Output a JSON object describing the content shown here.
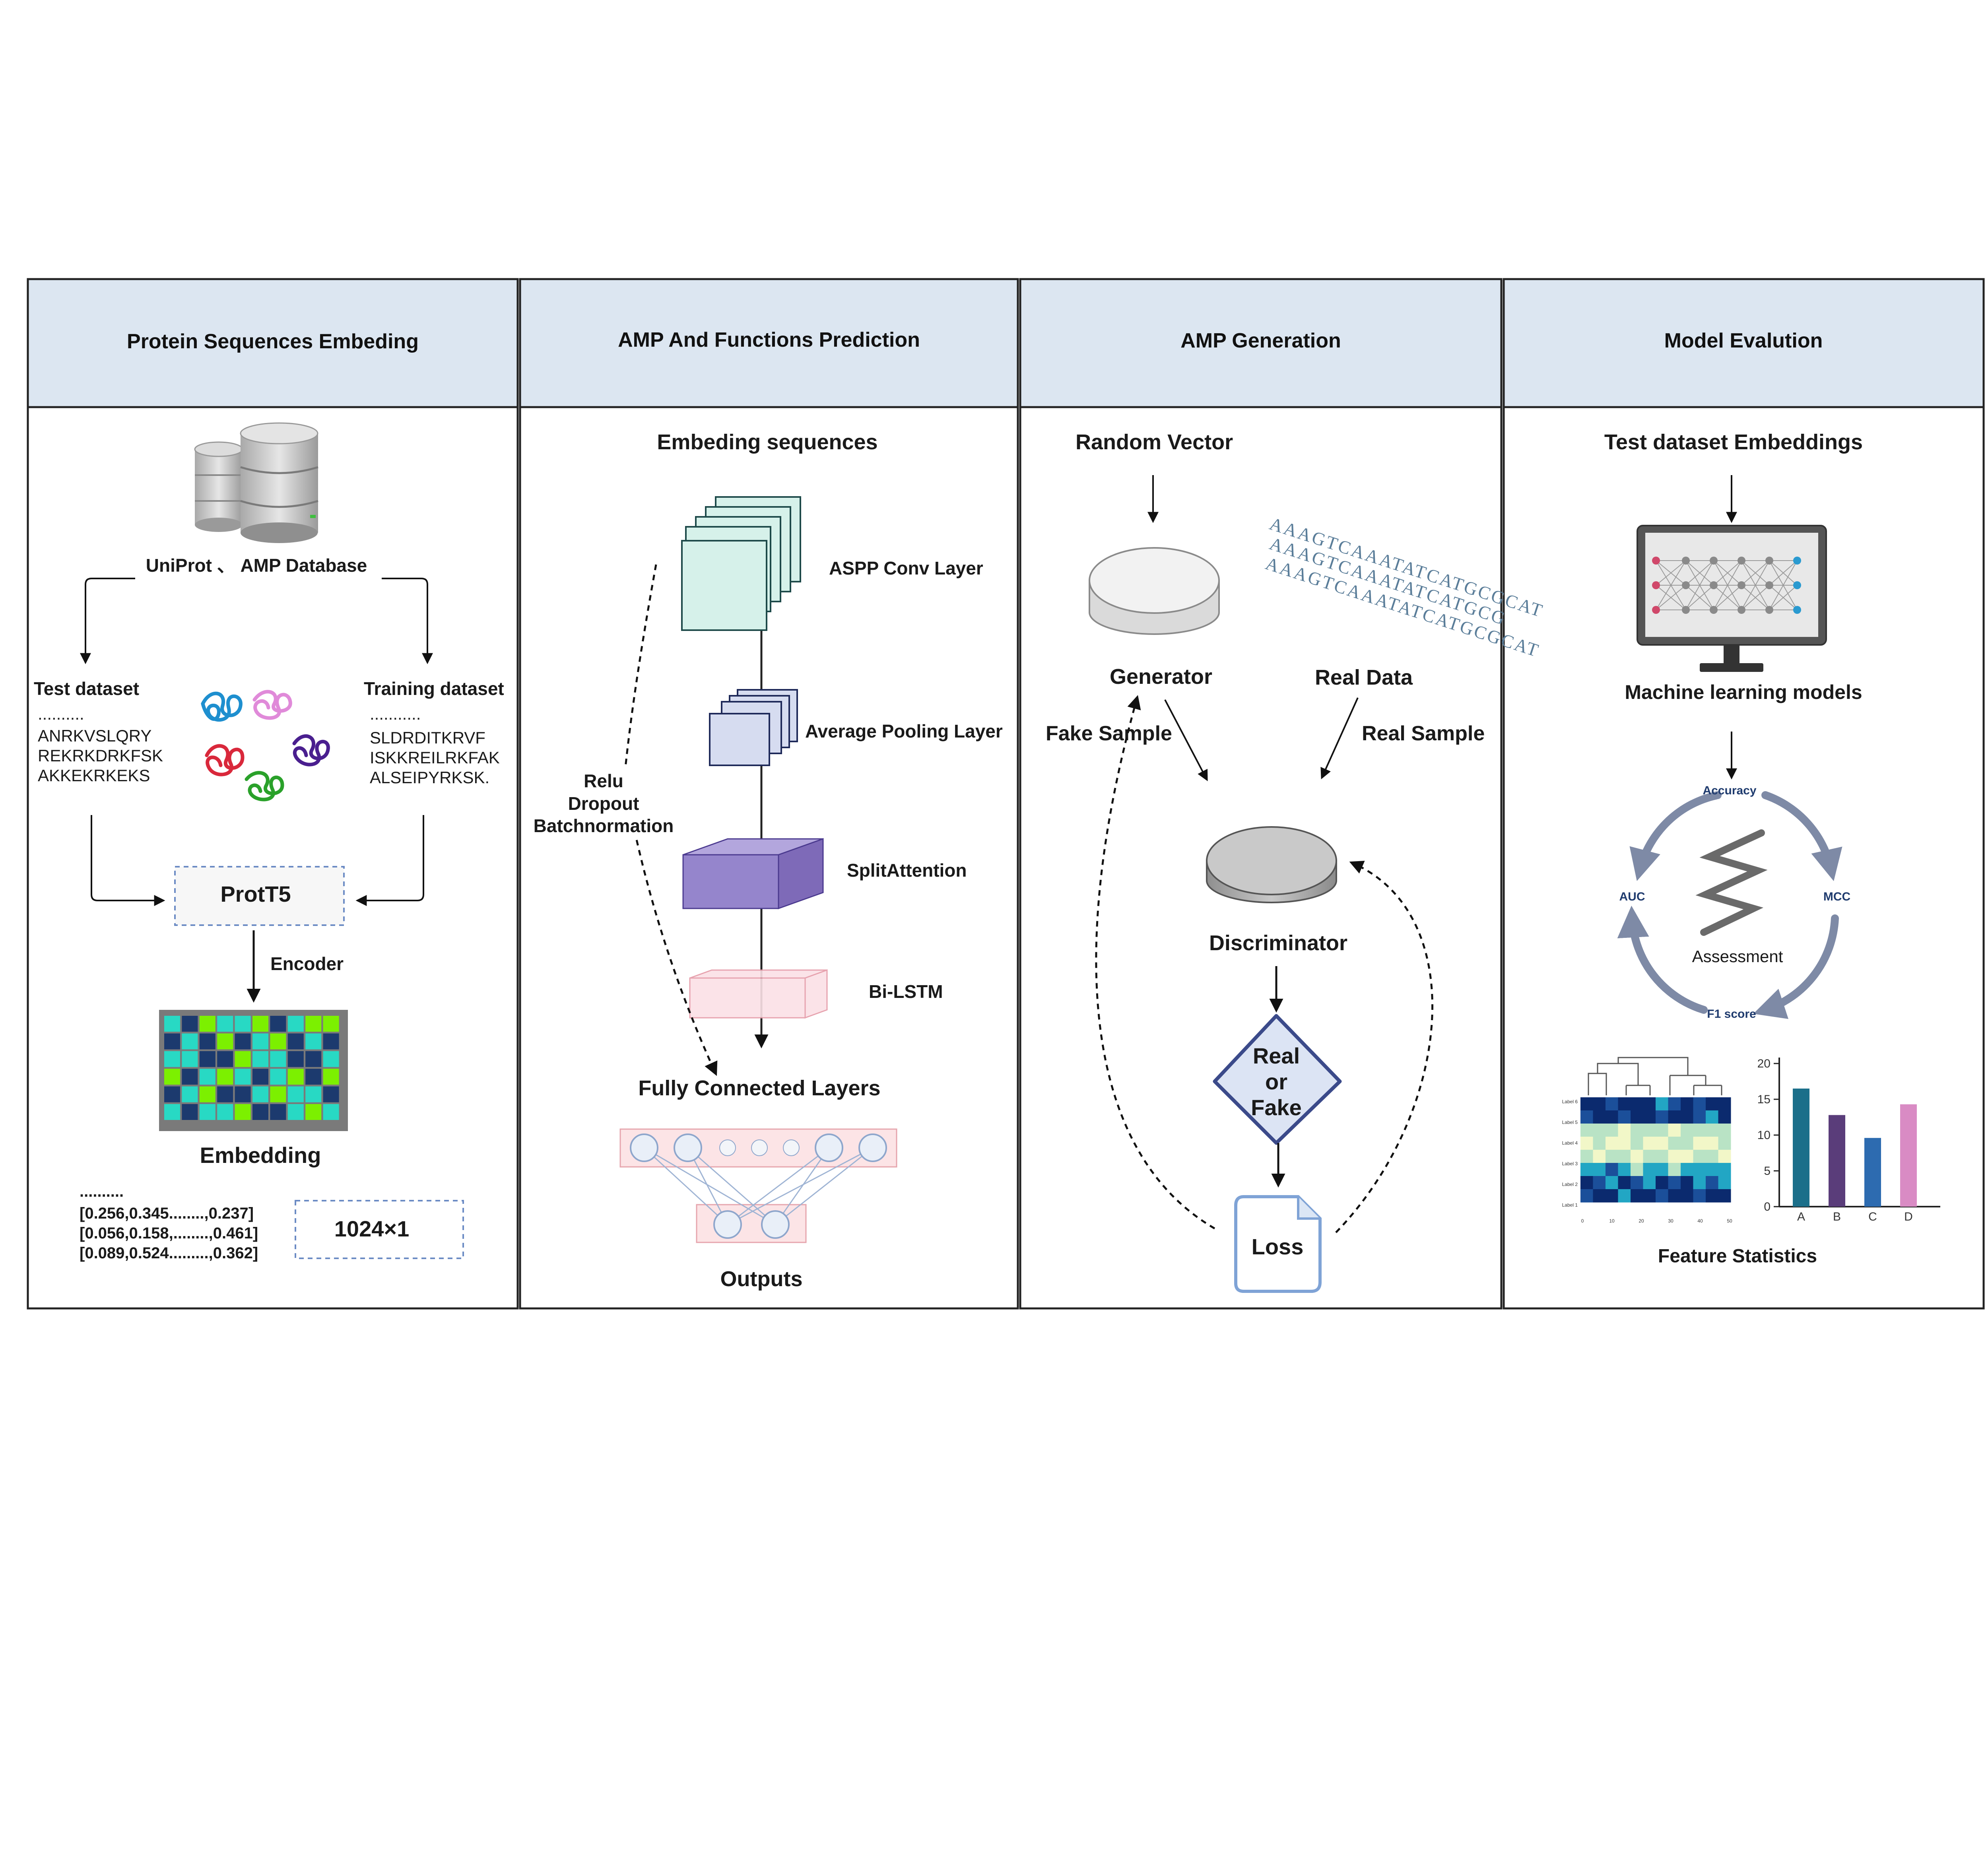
{
  "panels": [
    {
      "title": "Protein Sequences Embeding"
    },
    {
      "title": "AMP And  Functions Prediction"
    },
    {
      "title": "AMP Generation"
    },
    {
      "title": "Model Evalution"
    }
  ],
  "panel1": {
    "database_label": "UniProt 、 AMP Database",
    "test_title": "Test dataset",
    "test_dots": "..........",
    "test_seqs": [
      "ANRKVSLQRY",
      "REKRKDRKFSK",
      "AKKEKRKEKS"
    ],
    "train_title": "Training dataset",
    "train_dots": "...........",
    "train_seqs": [
      "SLDRDITKRVF",
      "ISKKREILRKFAK",
      "ALSEIPYRKSK."
    ],
    "prott5": "ProtT5",
    "encoder": "Encoder",
    "embedding": "Embedding",
    "vec_dots": "..........",
    "vectors": [
      "[0.256,0.345........,0.237]",
      "[0.056,0.158,........,0.461]",
      "[0.089,0.524.........,0.362]"
    ],
    "dim": "1024×1"
  },
  "panel2": {
    "input": "Embeding sequences",
    "aspp": "ASPP Conv Layer",
    "pool": "Average Pooling  Layer",
    "split": "SplitAttention",
    "bilstm": "Bi-LSTM",
    "side": [
      "Relu",
      "Dropout",
      "Batchnormation"
    ],
    "fc": "Fully Connected Layers",
    "outputs": "Outputs"
  },
  "panel3": {
    "random": "Random Vector",
    "generator": "Generator",
    "real_data": "Real Data",
    "fake_sample": "Fake Sample",
    "real_sample": "Real Sample",
    "discriminator": "Discriminator",
    "decision": [
      "Real",
      "or",
      "Fake"
    ],
    "loss": "Loss",
    "dna_lines": [
      "AAAGTCAAATATCATGCGCAT",
      "AAAGTCAAATATCATGCG",
      "AAAGTCAAATATCATGCGCAT"
    ]
  },
  "panel4": {
    "test_emb": "Test  dataset Embeddings",
    "ml": "Machine learning models",
    "accuracy": "Accuracy",
    "mcc": "MCC",
    "f1": "F1 score",
    "auc": "AUC",
    "assessment": "Assessment",
    "feature_stats": "Feature Statistics",
    "heatmap_row_labels": [
      "Label 6",
      "Label 5",
      "Label 4",
      "Label 3",
      "Label 2",
      "Label 1"
    ],
    "heatmap_x_ticks": [
      "0",
      "10",
      "20",
      "30",
      "40",
      "50"
    ]
  },
  "chart_data": {
    "type": "bar",
    "categories": [
      "A",
      "B",
      "C",
      "D"
    ],
    "values": [
      16.5,
      12.8,
      9.6,
      14.3
    ],
    "colors": [
      "#1b6f8a",
      "#5a3d7a",
      "#2d6bb0",
      "#d98bc4"
    ],
    "y_ticks": [
      0,
      5,
      10,
      15,
      20
    ],
    "ylim": [
      0,
      20
    ]
  },
  "colors": {
    "header_bg": "#dce6f1",
    "grid_green": "#7cf000",
    "grid_cyan": "#28d9c4",
    "grid_navy": "#1c3a6e",
    "arrow_gray": "#7e8aa6"
  }
}
